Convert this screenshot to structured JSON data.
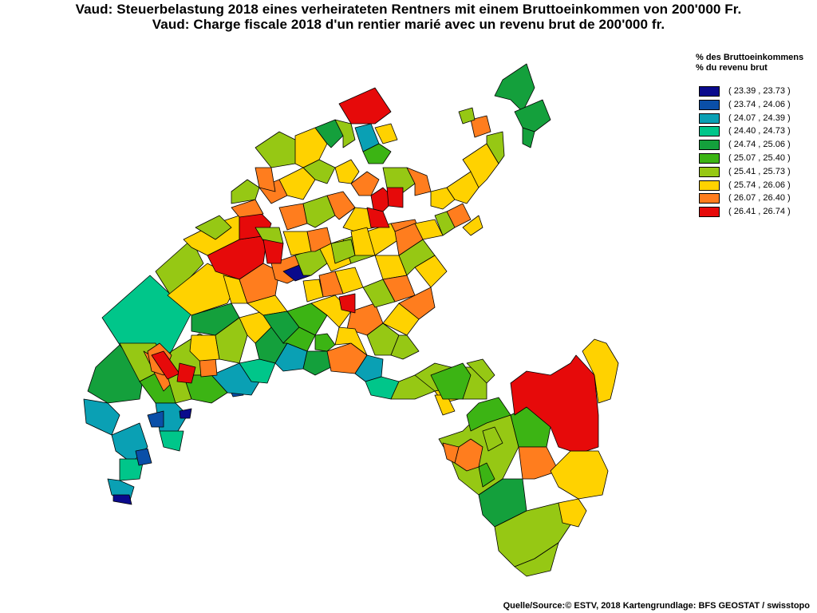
{
  "title_de": "Vaud: Steuerbelastung 2018 eines verheirateten Rentners mit einem Bruttoeinkommen von 200'000 Fr.",
  "title_fr": "Vaud: Charge fiscale 2018 d'un rentier marié avec un revenu brut de 200'000 fr.",
  "legend": {
    "heading_de": "% des Bruttoeinkommens",
    "heading_fr": "% du revenu brut",
    "classes": [
      {
        "label": "( 23.39 , 23.73 )",
        "color": "#0a0a8c"
      },
      {
        "label": "( 23.74 , 24.06 )",
        "color": "#0a4fa8"
      },
      {
        "label": "( 24.07 , 24.39 )",
        "color": "#0aa0b4"
      },
      {
        "label": "( 24.40 , 24.73 )",
        "color": "#00c68a"
      },
      {
        "label": "( 24.74 , 25.06 )",
        "color": "#14a03c"
      },
      {
        "label": "( 25.07 , 25.40 )",
        "color": "#3cb414"
      },
      {
        "label": "( 25.41 , 25.73 )",
        "color": "#96c814"
      },
      {
        "label": "( 25.74 , 26.06 )",
        "color": "#ffd200"
      },
      {
        "label": "( 26.07 , 26.40 )",
        "color": "#ff7d1e"
      },
      {
        "label": "( 26.41 , 26.74 )",
        "color": "#e60a0a"
      }
    ]
  },
  "source": "Quelle/Source:© ESTV, 2018 Kartengrundlage: BFS GEOSTAT / swisstopo"
}
